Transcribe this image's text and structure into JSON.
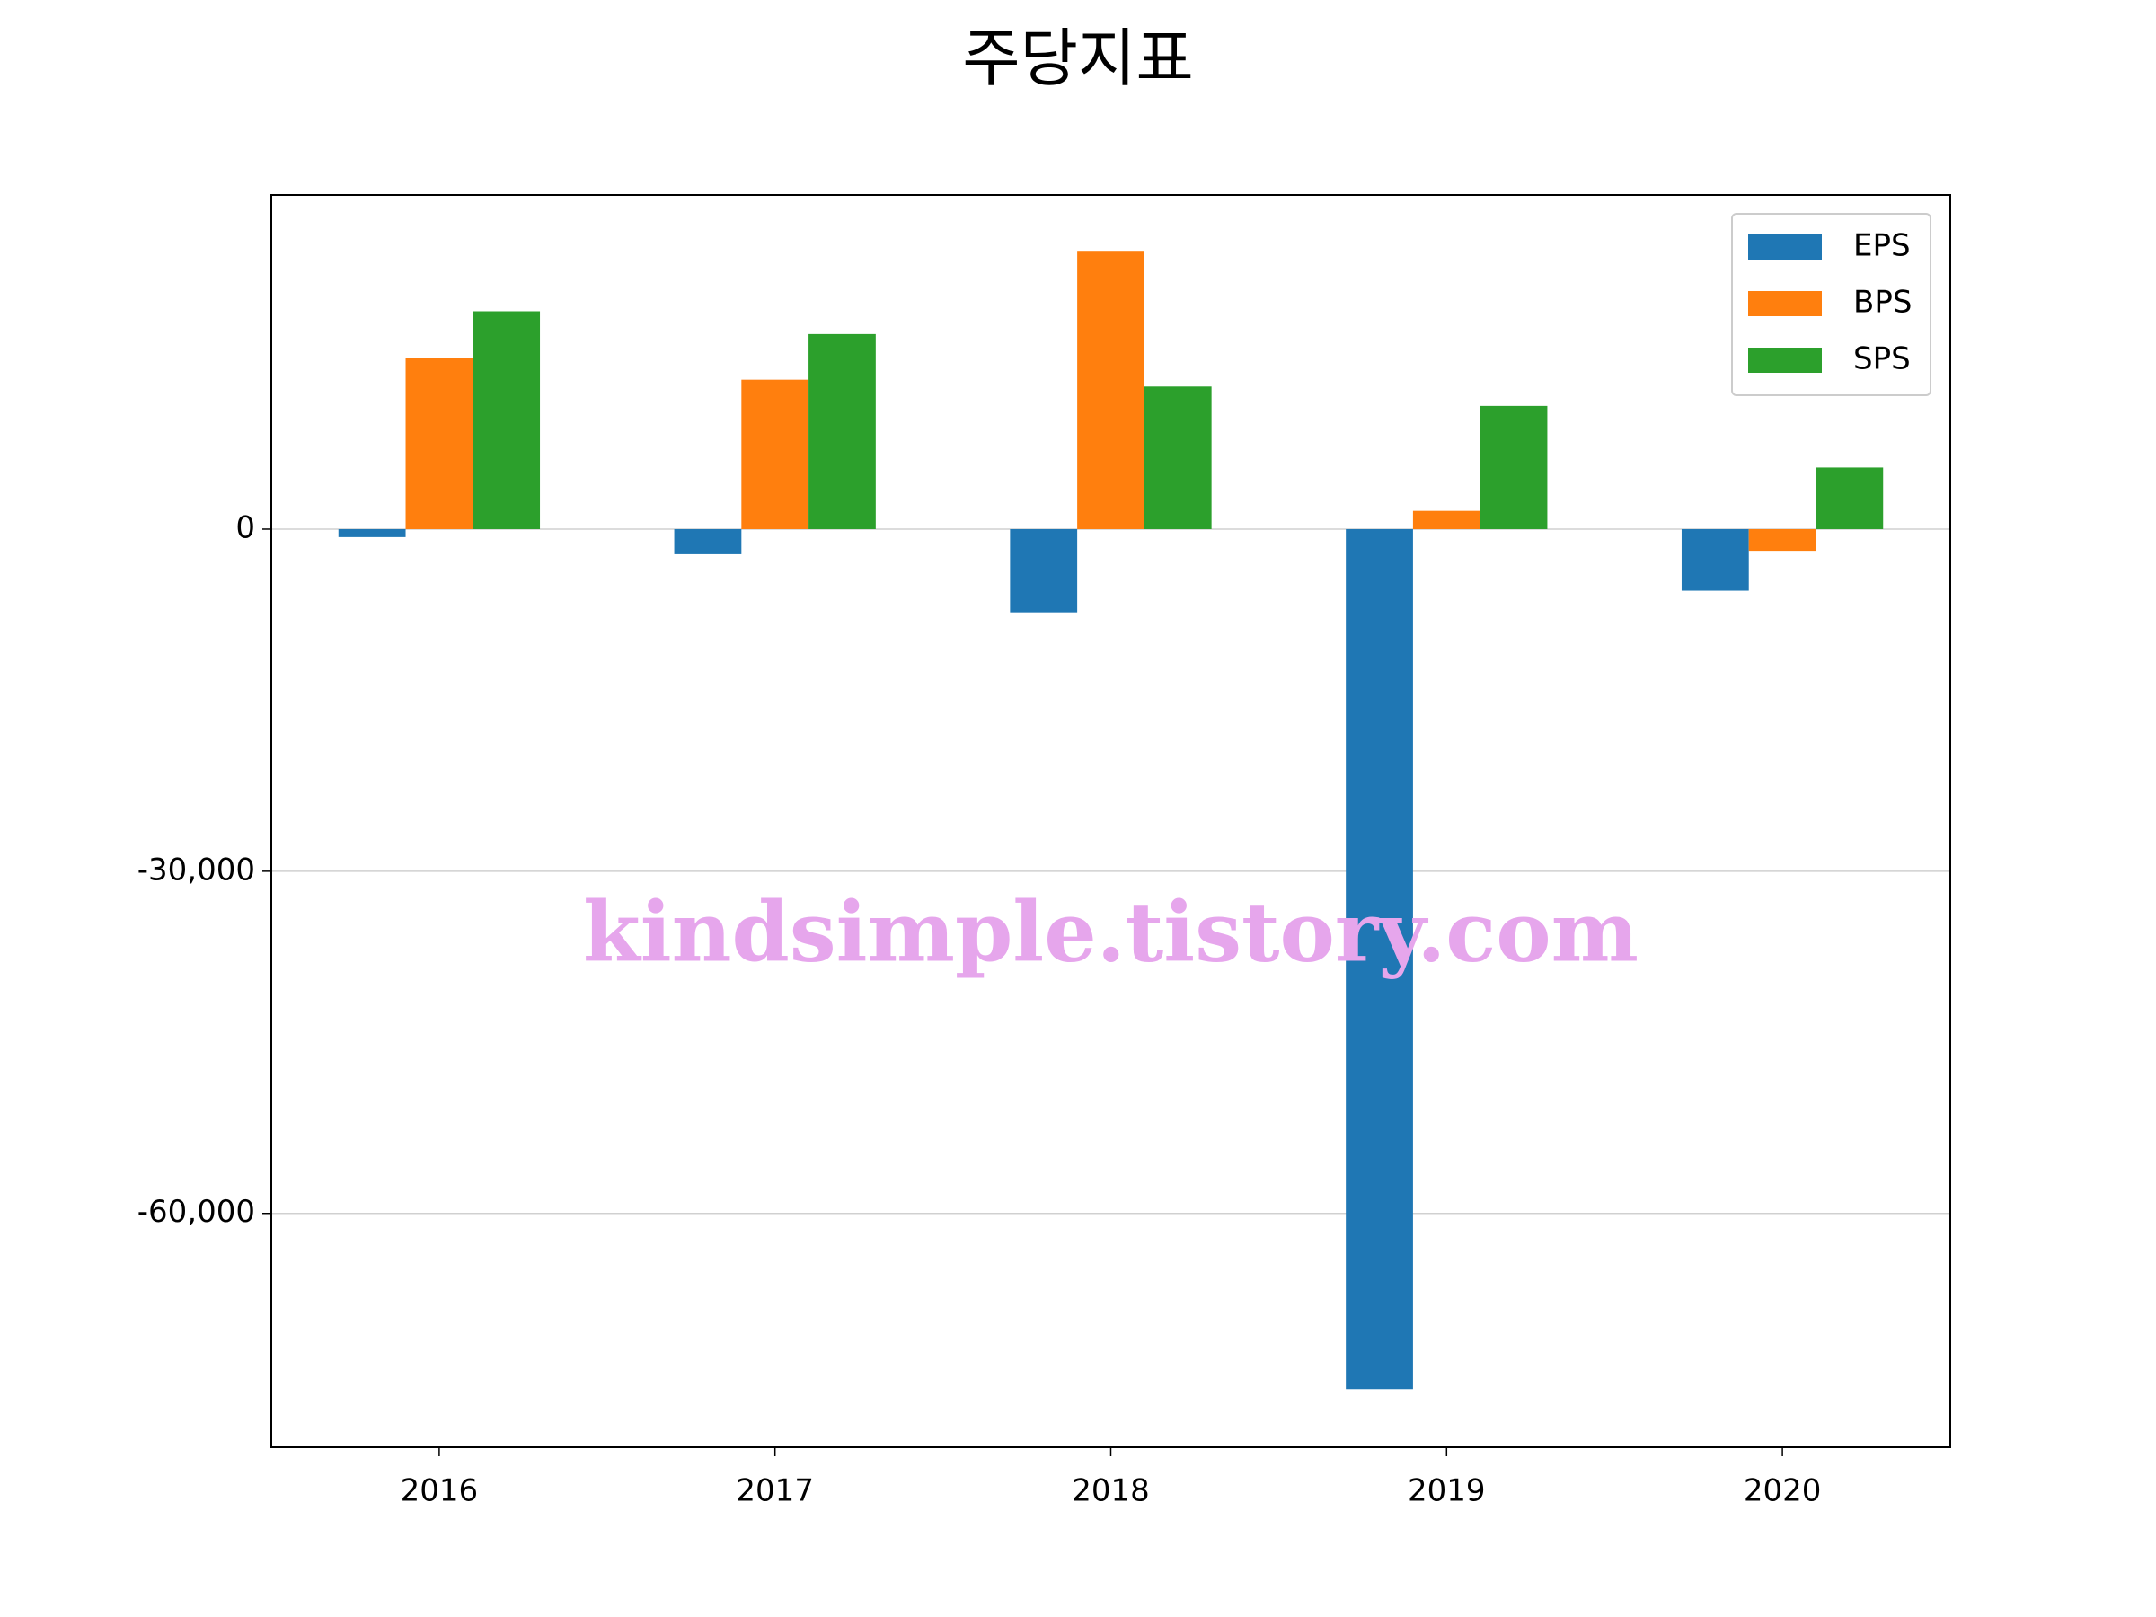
{
  "chart_data": {
    "type": "bar",
    "title": "주당지표",
    "categories": [
      "2016",
      "2017",
      "2018",
      "2019",
      "2020"
    ],
    "series": [
      {
        "name": "EPS",
        "color": "#1f77b4",
        "values": [
          -700,
          -2200,
          -7300,
          -75400,
          -5400
        ]
      },
      {
        "name": "BPS",
        "color": "#ff7f0e",
        "values": [
          15000,
          13100,
          24400,
          1600,
          -1900
        ]
      },
      {
        "name": "SPS",
        "color": "#2ca02c",
        "values": [
          19100,
          17100,
          12500,
          10800,
          5400
        ]
      }
    ],
    "ylim": [
      -80500,
      29300
    ],
    "yticks": [
      {
        "value": -60000,
        "label": "-60,000"
      },
      {
        "value": -30000,
        "label": "-30,000"
      },
      0
    ],
    "grid": true,
    "legend": "upper right",
    "watermark": "kindsimple.tistory.com"
  }
}
